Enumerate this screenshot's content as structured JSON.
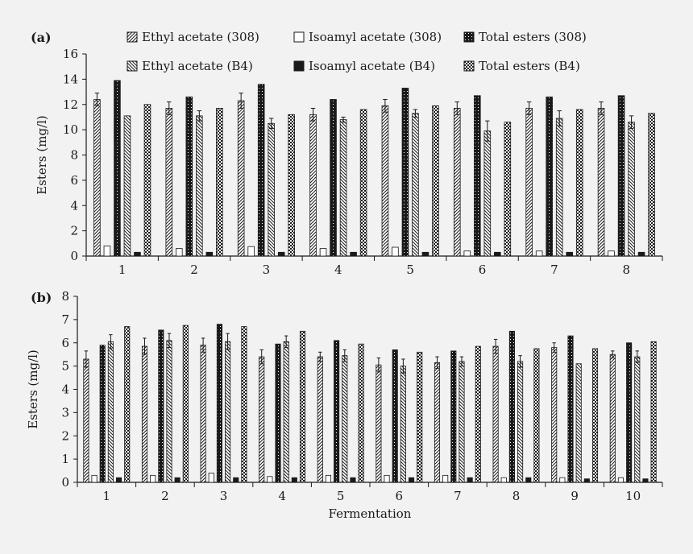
{
  "colors": {
    "background": "#f2f2f2",
    "ink": "#1a1a1a",
    "white_fill": "#ffffff"
  },
  "legend": [
    {
      "key": "ethyl_308",
      "label": "Ethyl acetate (308)",
      "pattern": "diag-fwd"
    },
    {
      "key": "isoamyl_308",
      "label": "Isoamyl acetate (308)",
      "pattern": "white"
    },
    {
      "key": "total_308",
      "label": "Total esters (308)",
      "pattern": "black-dots"
    },
    {
      "key": "ethyl_b4",
      "label": "Ethyl acetate (B4)",
      "pattern": "diag-back"
    },
    {
      "key": "isoamyl_b4",
      "label": "Isoamyl acetate (B4)",
      "pattern": "solid-black"
    },
    {
      "key": "total_b4",
      "label": "Total esters (B4)",
      "pattern": "checker"
    }
  ],
  "chart_data": [
    {
      "panel_label": "(a)",
      "type": "bar",
      "ylabel": "Esters (mg/l)",
      "xlabel": "",
      "ylim": [
        0,
        16
      ],
      "yticks": [
        0,
        2,
        4,
        6,
        8,
        10,
        12,
        14,
        16
      ],
      "categories": [
        "1",
        "2",
        "3",
        "4",
        "5",
        "6",
        "7",
        "8"
      ],
      "series": [
        {
          "key": "ethyl_308",
          "name": "Ethyl acetate (308)",
          "values": [
            12.4,
            11.7,
            12.3,
            11.2,
            11.9,
            11.7,
            11.7,
            11.7
          ],
          "errors": [
            0.5,
            0.5,
            0.6,
            0.5,
            0.5,
            0.5,
            0.5,
            0.5
          ]
        },
        {
          "key": "isoamyl_308",
          "name": "Isoamyl acetate (308)",
          "values": [
            0.8,
            0.6,
            0.75,
            0.6,
            0.7,
            0.4,
            0.4,
            0.4
          ],
          "errors": [
            0,
            0,
            0,
            0,
            0,
            0,
            0,
            0
          ]
        },
        {
          "key": "total_308",
          "name": "Total esters (308)",
          "values": [
            13.9,
            12.6,
            13.6,
            12.4,
            13.3,
            12.7,
            12.6,
            12.7
          ],
          "errors": [
            0,
            0,
            0,
            0,
            0,
            0,
            0,
            0
          ]
        },
        {
          "key": "ethyl_b4",
          "name": "Ethyl acetate (B4)",
          "values": [
            11.1,
            11.1,
            10.5,
            10.8,
            11.3,
            9.9,
            10.9,
            10.6
          ],
          "errors": [
            0,
            0.4,
            0.4,
            0.2,
            0.3,
            0.8,
            0.6,
            0.5
          ]
        },
        {
          "key": "isoamyl_b4",
          "name": "Isoamyl acetate (B4)",
          "values": [
            0.3,
            0.3,
            0.3,
            0.3,
            0.3,
            0.3,
            0.3,
            0.3
          ],
          "errors": [
            0,
            0,
            0,
            0,
            0,
            0,
            0,
            0
          ]
        },
        {
          "key": "total_b4",
          "name": "Total esters (B4)",
          "values": [
            12.0,
            11.7,
            11.2,
            11.6,
            11.9,
            10.6,
            11.6,
            11.3
          ],
          "errors": [
            0,
            0,
            0,
            0,
            0,
            0,
            0,
            0
          ]
        }
      ]
    },
    {
      "panel_label": "(b)",
      "type": "bar",
      "ylabel": "Esters (mg/l)",
      "xlabel": "Fermentation",
      "ylim": [
        0,
        8
      ],
      "yticks": [
        0,
        1,
        2,
        3,
        4,
        5,
        6,
        7,
        8
      ],
      "categories": [
        "1",
        "2",
        "3",
        "4",
        "5",
        "6",
        "7",
        "8",
        "9",
        "10"
      ],
      "series": [
        {
          "key": "ethyl_308",
          "name": "Ethyl acetate (308)",
          "values": [
            5.3,
            5.85,
            5.9,
            5.4,
            5.4,
            5.05,
            5.15,
            5.85,
            5.8,
            5.5
          ],
          "errors": [
            0.35,
            0.35,
            0.3,
            0.3,
            0.2,
            0.3,
            0.25,
            0.3,
            0.2,
            0.15
          ]
        },
        {
          "key": "isoamyl_308",
          "name": "Isoamyl acetate (308)",
          "values": [
            0.3,
            0.3,
            0.4,
            0.25,
            0.3,
            0.3,
            0.3,
            0.2,
            0.2,
            0.2
          ],
          "errors": [
            0,
            0,
            0,
            0,
            0,
            0,
            0,
            0,
            0,
            0
          ]
        },
        {
          "key": "total_308",
          "name": "Total esters (308)",
          "values": [
            5.9,
            6.55,
            6.8,
            5.95,
            6.1,
            5.7,
            5.65,
            6.5,
            6.3,
            6.0
          ],
          "errors": [
            0,
            0,
            0,
            0,
            0,
            0,
            0,
            0,
            0,
            0
          ]
        },
        {
          "key": "ethyl_b4",
          "name": "Ethyl acetate (B4)",
          "values": [
            6.05,
            6.1,
            6.05,
            6.05,
            5.45,
            5.0,
            5.2,
            5.2,
            5.1,
            5.4
          ],
          "errors": [
            0.3,
            0.3,
            0.35,
            0.25,
            0.25,
            0.3,
            0.2,
            0.25,
            0,
            0.25
          ]
        },
        {
          "key": "isoamyl_b4",
          "name": "Isoamyl acetate (B4)",
          "values": [
            0.2,
            0.2,
            0.2,
            0.2,
            0.2,
            0.2,
            0.2,
            0.2,
            0.15,
            0.15
          ],
          "errors": [
            0,
            0,
            0,
            0,
            0,
            0,
            0,
            0,
            0,
            0
          ]
        },
        {
          "key": "total_b4",
          "name": "Total esters (B4)",
          "values": [
            6.7,
            6.75,
            6.7,
            6.5,
            5.95,
            5.6,
            5.85,
            5.75,
            5.75,
            6.05
          ],
          "errors": [
            0,
            0,
            0,
            0,
            0,
            0,
            0,
            0,
            0,
            0
          ]
        }
      ]
    }
  ]
}
